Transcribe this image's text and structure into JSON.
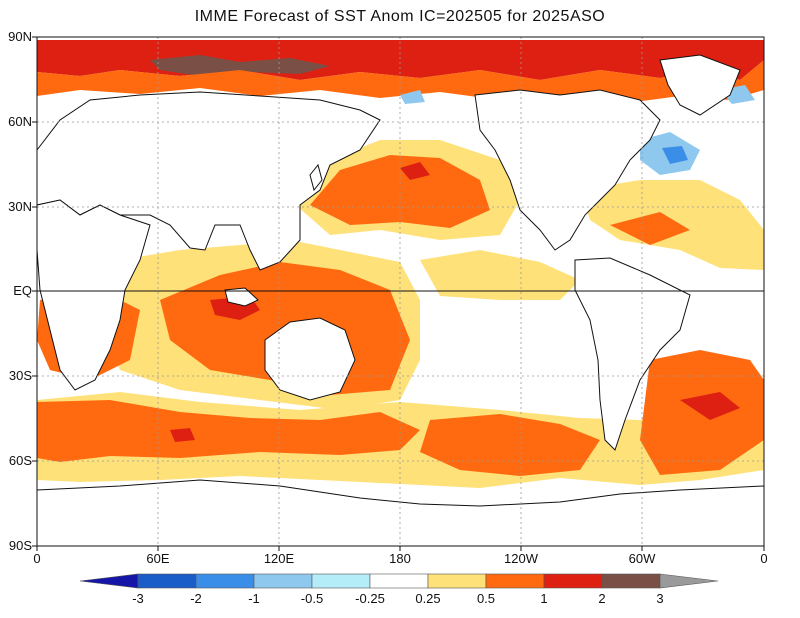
{
  "title": "IMME Forecast of SST Anom IC=202505 for 2025ASO",
  "lat_labels": [
    "90N",
    "60N",
    "30N",
    "EQ",
    "30S",
    "60S",
    "90S"
  ],
  "lon_labels": [
    "0",
    "60E",
    "120E",
    "180",
    "120W",
    "60W",
    "0"
  ],
  "colorbar": {
    "labels": [
      "-3",
      "-2",
      "-1",
      "-0.5",
      "-0.25",
      "0.25",
      "0.5",
      "1",
      "2",
      "3"
    ],
    "colors": [
      "#1515a8",
      "#1a5dc8",
      "#3b8ee8",
      "#8fc8ee",
      "#b4ecf8",
      "#ffffff",
      "#ffe17a",
      "#ff6a10",
      "#dd2012",
      "#7a5046",
      "#9a9a9a"
    ]
  },
  "colors": {
    "land": "#ffffff",
    "neutral_ocean": "#ffffff",
    "warm_light": "#ffe17a",
    "warm_mid": "#ff6a10",
    "warm_strong": "#dd2012",
    "warm_extreme": "#7a5046",
    "cool_light": "#8fc8ee",
    "cool_mid": "#3b8ee8"
  }
}
